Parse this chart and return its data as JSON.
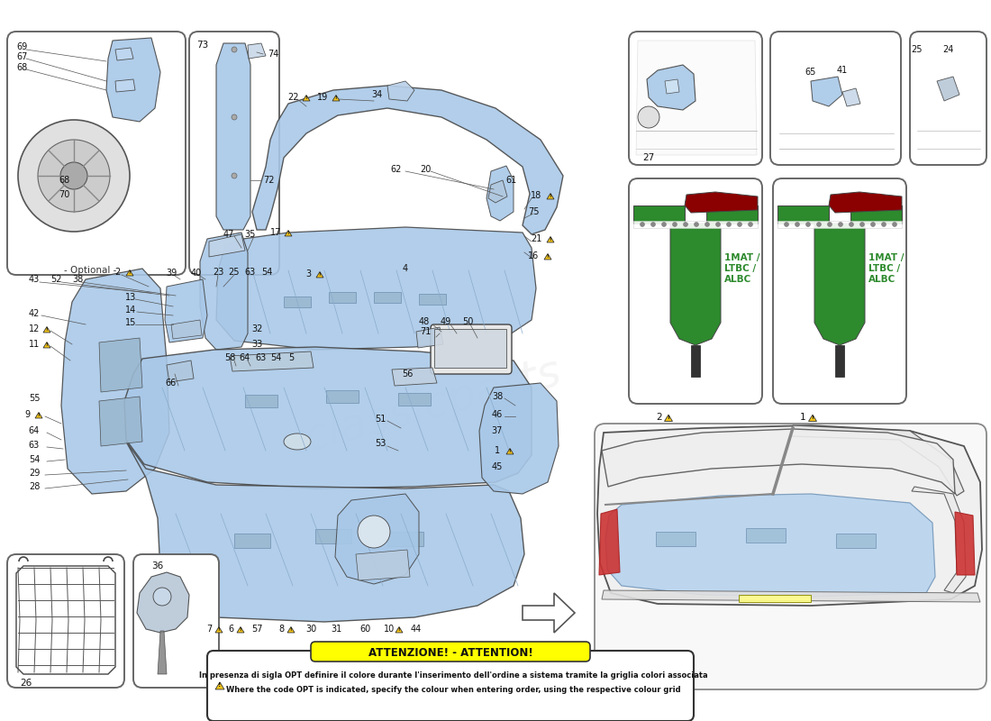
{
  "bg": "#ffffff",
  "lb": "#a8c8e8",
  "lb2": "#b8d4ee",
  "lc": "#444444",
  "attn_header": "ATTENZIONE! - ATTENTION!",
  "attn_it": "In presenza di sigla OPT definire il colore durante l'inserimento dell'ordine a sistema tramite la griglia colori associata",
  "attn_en": "Where the code OPT is indicated, specify the colour when entering order, using the respective colour grid",
  "opt_label": "- Optional -",
  "intp_color": "#8b0000",
  "green_color": "#2d8a2d",
  "green_dark": "#1a5c1a",
  "warn_fill": "#f5c518",
  "warn_edge": "#333333"
}
